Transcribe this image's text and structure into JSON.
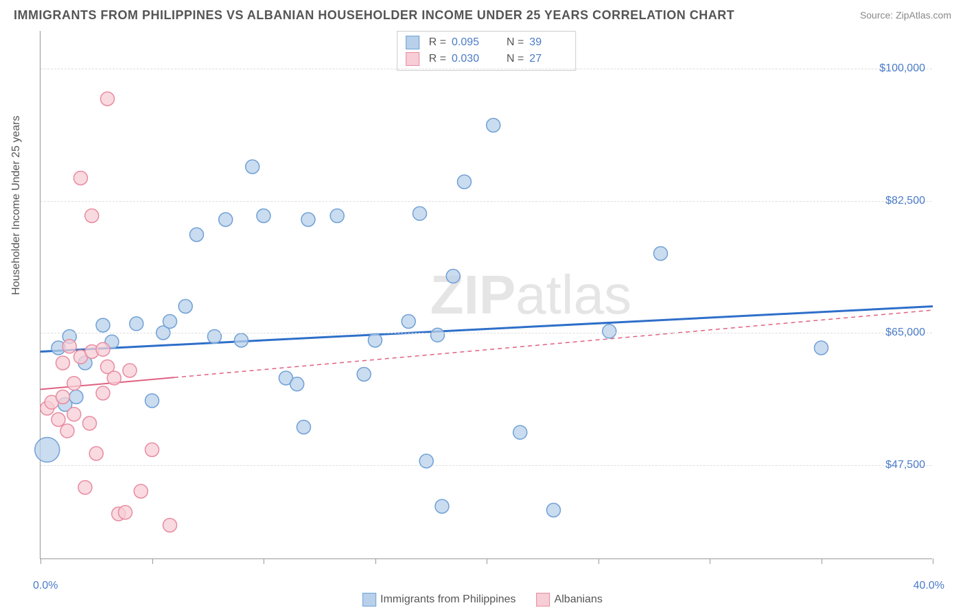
{
  "title": "IMMIGRANTS FROM PHILIPPINES VS ALBANIAN HOUSEHOLDER INCOME UNDER 25 YEARS CORRELATION CHART",
  "source": "Source: ZipAtlas.com",
  "watermark": {
    "part1": "ZIP",
    "part2": "atlas"
  },
  "y_axis_title": "Householder Income Under 25 years",
  "chart": {
    "type": "scatter",
    "xlim": [
      0,
      40
    ],
    "ylim": [
      35000,
      105000
    ],
    "x_tick_positions": [
      0,
      5,
      10,
      15,
      20,
      25,
      30,
      35,
      40
    ],
    "y_ticks": [
      {
        "value": 47500,
        "label": "$47,500"
      },
      {
        "value": 65000,
        "label": "$65,000"
      },
      {
        "value": 82500,
        "label": "$82,500"
      },
      {
        "value": 100000,
        "label": "$100,000"
      }
    ],
    "x_min_label": "0.0%",
    "x_max_label": "40.0%",
    "background_color": "#ffffff",
    "grid_color": "#dddddd",
    "series": [
      {
        "name": "Immigrants from Philippines",
        "color_fill": "#b8d0ea",
        "color_stroke": "#6fa0d6",
        "marker_radius": 10,
        "reg_color": "#2e6fc9",
        "reg_width": 3,
        "reg_dash": "none",
        "reg_line": {
          "x1": 0,
          "y1": 62500,
          "x2": 40,
          "y2": 68500
        },
        "R": "0.095",
        "N": "39",
        "points": [
          {
            "x": 0.3,
            "y": 49500,
            "r": 18
          },
          {
            "x": 0.8,
            "y": 63000
          },
          {
            "x": 1.1,
            "y": 55500
          },
          {
            "x": 1.3,
            "y": 64500
          },
          {
            "x": 1.6,
            "y": 56500
          },
          {
            "x": 2.0,
            "y": 61000
          },
          {
            "x": 2.8,
            "y": 66000
          },
          {
            "x": 3.2,
            "y": 63800
          },
          {
            "x": 4.3,
            "y": 66200
          },
          {
            "x": 5.0,
            "y": 56000
          },
          {
            "x": 5.5,
            "y": 65000
          },
          {
            "x": 5.8,
            "y": 66500
          },
          {
            "x": 6.5,
            "y": 68500
          },
          {
            "x": 7.0,
            "y": 78000
          },
          {
            "x": 7.8,
            "y": 64500
          },
          {
            "x": 8.3,
            "y": 80000
          },
          {
            "x": 9.0,
            "y": 64000
          },
          {
            "x": 9.5,
            "y": 87000
          },
          {
            "x": 10.0,
            "y": 80500
          },
          {
            "x": 11.0,
            "y": 59000
          },
          {
            "x": 11.5,
            "y": 58200
          },
          {
            "x": 11.8,
            "y": 52500
          },
          {
            "x": 12.0,
            "y": 80000
          },
          {
            "x": 13.3,
            "y": 80500
          },
          {
            "x": 14.5,
            "y": 59500
          },
          {
            "x": 15.0,
            "y": 64000
          },
          {
            "x": 16.5,
            "y": 66500
          },
          {
            "x": 17.0,
            "y": 80800
          },
          {
            "x": 17.3,
            "y": 48000
          },
          {
            "x": 17.8,
            "y": 64700
          },
          {
            "x": 18.0,
            "y": 42000
          },
          {
            "x": 18.5,
            "y": 72500
          },
          {
            "x": 19.0,
            "y": 85000
          },
          {
            "x": 20.3,
            "y": 92500
          },
          {
            "x": 21.5,
            "y": 51800
          },
          {
            "x": 23.0,
            "y": 41500
          },
          {
            "x": 25.5,
            "y": 65200
          },
          {
            "x": 27.8,
            "y": 75500
          },
          {
            "x": 35.0,
            "y": 63000
          }
        ]
      },
      {
        "name": "Albanians",
        "color_fill": "#f7cdd6",
        "color_stroke": "#e88ba0",
        "marker_radius": 10,
        "reg_color": "#e06080",
        "reg_width": 2,
        "reg_solid_until_x": 6.0,
        "reg_dash": "6,5",
        "reg_line": {
          "x1": 0,
          "y1": 57500,
          "x2": 40,
          "y2": 68000
        },
        "R": "0.030",
        "N": "27",
        "points": [
          {
            "x": 0.3,
            "y": 55000
          },
          {
            "x": 0.5,
            "y": 55800
          },
          {
            "x": 0.8,
            "y": 53500
          },
          {
            "x": 1.0,
            "y": 56500
          },
          {
            "x": 1.0,
            "y": 61000
          },
          {
            "x": 1.2,
            "y": 52000
          },
          {
            "x": 1.3,
            "y": 63200
          },
          {
            "x": 1.5,
            "y": 54200
          },
          {
            "x": 1.5,
            "y": 58300
          },
          {
            "x": 1.8,
            "y": 61800
          },
          {
            "x": 1.8,
            "y": 85500
          },
          {
            "x": 2.0,
            "y": 44500
          },
          {
            "x": 2.2,
            "y": 53000
          },
          {
            "x": 2.3,
            "y": 62500
          },
          {
            "x": 2.3,
            "y": 80500
          },
          {
            "x": 2.5,
            "y": 49000
          },
          {
            "x": 2.8,
            "y": 57000
          },
          {
            "x": 2.8,
            "y": 62800
          },
          {
            "x": 3.0,
            "y": 60500
          },
          {
            "x": 3.0,
            "y": 96000
          },
          {
            "x": 3.3,
            "y": 59000
          },
          {
            "x": 3.5,
            "y": 41000
          },
          {
            "x": 3.8,
            "y": 41200
          },
          {
            "x": 4.0,
            "y": 60000
          },
          {
            "x": 4.5,
            "y": 44000
          },
          {
            "x": 5.0,
            "y": 49500
          },
          {
            "x": 5.8,
            "y": 39500
          }
        ]
      }
    ]
  },
  "bottom_legend": {
    "items": [
      {
        "label": "Immigrants from Philippines",
        "fill": "#b8d0ea",
        "stroke": "#6fa0d6"
      },
      {
        "label": "Albanians",
        "fill": "#f7cdd6",
        "stroke": "#e88ba0"
      }
    ]
  }
}
